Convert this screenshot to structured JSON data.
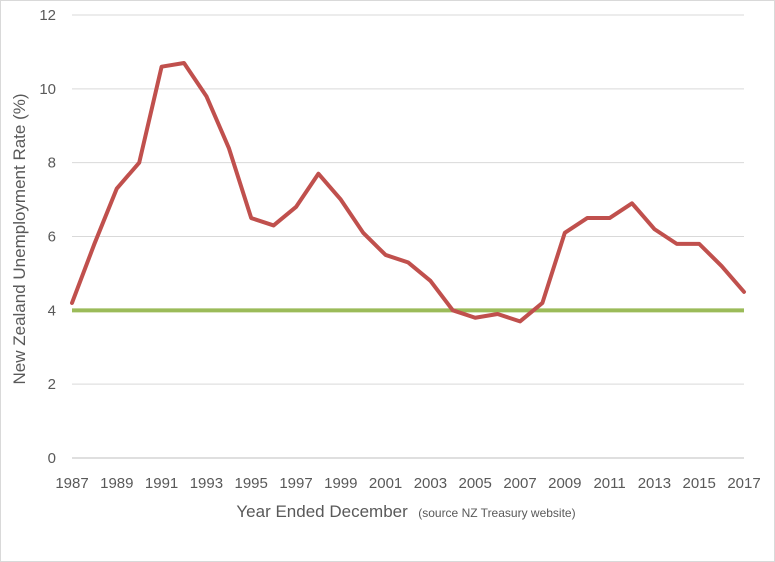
{
  "chart_data": {
    "type": "line",
    "x": [
      1987,
      1988,
      1989,
      1990,
      1991,
      1992,
      1993,
      1994,
      1995,
      1996,
      1997,
      1998,
      1999,
      2000,
      2001,
      2002,
      2003,
      2004,
      2005,
      2006,
      2007,
      2008,
      2009,
      2010,
      2011,
      2012,
      2013,
      2014,
      2015,
      2016,
      2017
    ],
    "x_tick_labels": [
      "1987",
      "1989",
      "1991",
      "1993",
      "1995",
      "1997",
      "1999",
      "2001",
      "2003",
      "2005",
      "2007",
      "2009",
      "2011",
      "2013",
      "2015",
      "2017"
    ],
    "y_ticks": [
      0,
      2,
      4,
      6,
      8,
      10,
      12
    ],
    "ylim": [
      0,
      12
    ],
    "xlabel": "Year Ended December",
    "xlabel_note": "(source NZ Treasury website)",
    "ylabel": "New Zealand Unemployment Rate (%)",
    "grid": true,
    "series": [
      {
        "values": [
          4.2,
          5.8,
          7.3,
          8.0,
          10.6,
          10.7,
          9.8,
          8.4,
          6.5,
          6.3,
          6.8,
          7.7,
          7.0,
          6.1,
          5.5,
          5.3,
          4.8,
          4.0,
          3.8,
          3.9,
          3.7,
          4.2,
          6.1,
          6.5,
          6.5,
          6.9,
          6.2,
          5.8,
          5.8,
          5.2,
          4.5
        ],
        "color": "#c0504d"
      }
    ],
    "reference_lines": [
      {
        "y": 4,
        "color": "#9bbb59"
      }
    ]
  }
}
